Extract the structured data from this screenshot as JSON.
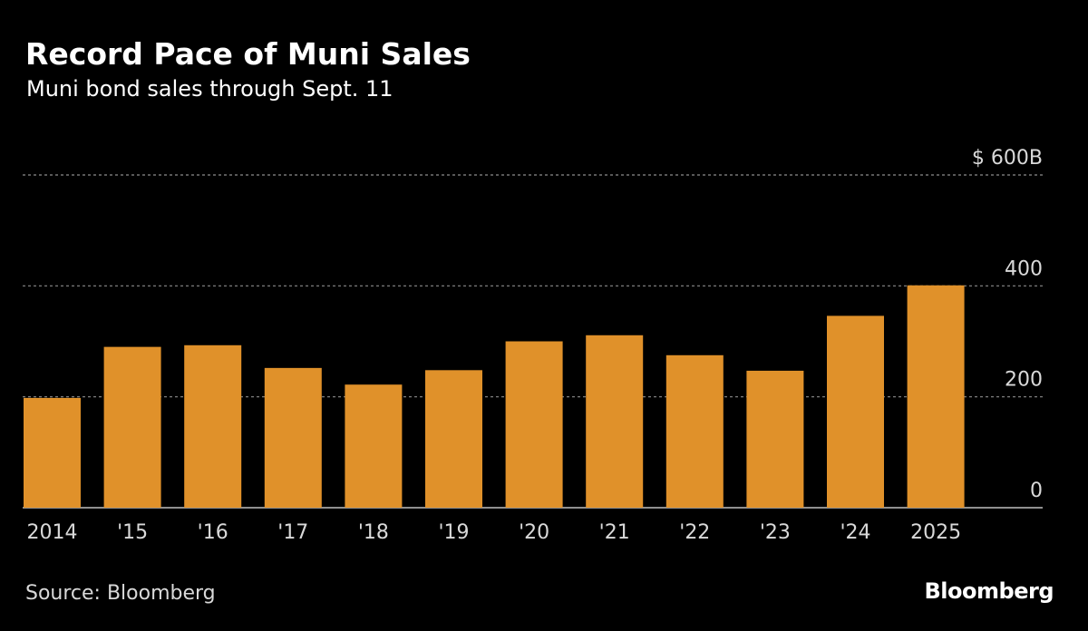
{
  "title": "Record Pace of Muni Sales",
  "subtitle": "Muni bond sales through Sept. 11",
  "source": "Source: Bloomberg",
  "brand": "Bloomberg",
  "colors": {
    "bar": "#E0912A",
    "background": "#000000",
    "grid": "#8c8c8c",
    "text": "#ffffff",
    "tick_text": "#d9d9d9"
  },
  "chart_data": {
    "type": "bar",
    "categories": [
      "2014",
      "'15",
      "'16",
      "'17",
      "'18",
      "'19",
      "'20",
      "'21",
      "'22",
      "'23",
      "'24",
      "2025"
    ],
    "values": [
      198,
      290,
      293,
      252,
      222,
      248,
      300,
      311,
      275,
      247,
      346,
      401
    ],
    "ylim": [
      0,
      600
    ],
    "yticks": [
      0,
      200,
      400,
      600
    ],
    "ytick_labels": [
      "0",
      "200",
      "400",
      "$ 600B"
    ],
    "grid": true,
    "ylabel": "",
    "xlabel": ""
  }
}
